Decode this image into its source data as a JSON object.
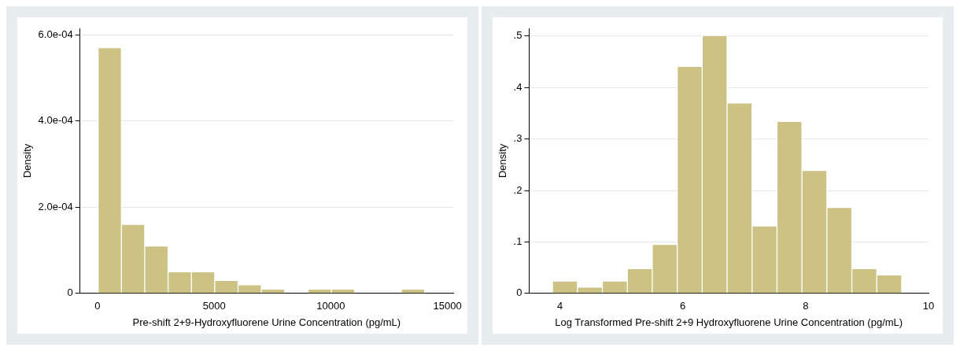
{
  "chart_data": [
    {
      "type": "histogram",
      "xlabel": "Pre-shift 2+9-Hydroxyfluorene Urine Concentration (pg/mL)",
      "ylabel": "Density",
      "color": "#cbc283",
      "bins": [
        25,
        1025,
        2025,
        3025,
        4025,
        5025,
        6025,
        7025,
        8025,
        9025,
        10025,
        11025,
        12025,
        13025,
        14025
      ],
      "values": [
        0.00057,
        0.00016,
        0.00011,
        5e-05,
        5e-05,
        3e-05,
        2e-05,
        1e-05,
        0,
        1e-05,
        1e-05,
        0,
        0,
        1e-05
      ],
      "xlim": [
        -750,
        15250
      ],
      "xticks": [
        0,
        5000,
        10000,
        15000
      ],
      "ylim": [
        0,
        0.000615
      ],
      "yticks": [
        {
          "value": 0,
          "label": "0"
        },
        {
          "value": 0.0002,
          "label": "2.0e-04"
        },
        {
          "value": 0.0004,
          "label": "4.0e-04"
        },
        {
          "value": 0.0006,
          "label": "6.0e-04"
        }
      ],
      "grid": "y"
    },
    {
      "type": "histogram",
      "xlabel": "Log Transformed Pre-shift 2+9 Hydroxyfluorene Urine Concentration (pg/mL)",
      "ylabel": "Density",
      "color": "#cbc283",
      "bins": [
        3.88,
        4.286,
        4.692,
        5.098,
        5.504,
        5.91,
        6.316,
        6.722,
        7.128,
        7.534,
        7.94,
        8.346,
        8.752,
        9.158,
        9.564
      ],
      "values": [
        0.024,
        0.012,
        0.024,
        0.048,
        0.095,
        0.441,
        0.501,
        0.37,
        0.131,
        0.334,
        0.239,
        0.167,
        0.048,
        0.036
      ],
      "xlim": [
        3.5,
        10
      ],
      "xticks": [
        4,
        6,
        8,
        10
      ],
      "ylim": [
        0,
        0.515
      ],
      "yticks": [
        {
          "value": 0,
          "label": "0"
        },
        {
          "value": 0.1,
          "label": ".1"
        },
        {
          "value": 0.2,
          "label": ".2"
        },
        {
          "value": 0.3,
          "label": ".3"
        },
        {
          "value": 0.4,
          "label": ".4"
        },
        {
          "value": 0.5,
          "label": ".5"
        }
      ],
      "grid": "y"
    }
  ]
}
